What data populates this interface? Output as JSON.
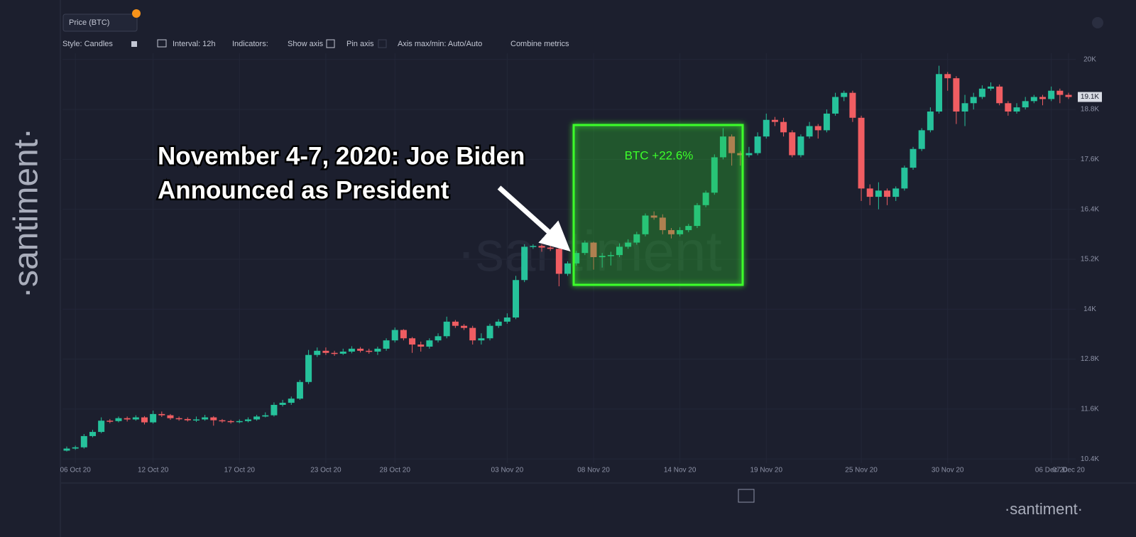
{
  "ui": {
    "toolbar": {
      "style": "Style: Candles",
      "interval": "Interval: 12h",
      "indicators": "Indicators:",
      "show_axis": "Show axis",
      "pin_axis": "Pin axis",
      "axis_minmax": "Axis max/min: Auto/Auto",
      "combine": "Combine metrics"
    },
    "side_logo": "·santiment·",
    "watermark": "·santiment",
    "footer_logo": "·santiment·"
  },
  "annotation": {
    "line1": "November 4-7, 2020: Joe Biden",
    "line2": "Announced as President",
    "box_label": "BTC +22.6%"
  },
  "chart_data": {
    "type": "candlestick",
    "up_color": "#26c29b",
    "down_color": "#f05d62",
    "grid": true,
    "ylim": [
      10300,
      20150
    ],
    "yticks": [
      {
        "value": 10400,
        "label": "10.4K"
      },
      {
        "value": 11600,
        "label": "11.6K"
      },
      {
        "value": 12800,
        "label": "12.8K"
      },
      {
        "value": 14000,
        "label": "14K"
      },
      {
        "value": 15200,
        "label": "15.2K"
      },
      {
        "value": 16400,
        "label": "16.4K"
      },
      {
        "value": 17600,
        "label": "17.6K"
      },
      {
        "value": 18800,
        "label": "18.8K"
      },
      {
        "value": 20000,
        "label": "20K"
      }
    ],
    "last_price": {
      "value": 19100,
      "label": "19.1K"
    },
    "categories": [
      null,
      "06 Oct 20",
      null,
      null,
      null,
      null,
      null,
      null,
      null,
      null,
      "12 Oct 20",
      null,
      null,
      null,
      null,
      null,
      null,
      null,
      null,
      null,
      "17 Oct 20",
      null,
      null,
      null,
      null,
      null,
      null,
      null,
      null,
      null,
      "23 Oct 20",
      null,
      null,
      null,
      null,
      null,
      null,
      null,
      "28 Oct 20",
      null,
      null,
      null,
      null,
      null,
      null,
      null,
      null,
      null,
      null,
      null,
      null,
      "03 Nov 20",
      null,
      null,
      null,
      null,
      null,
      null,
      null,
      null,
      null,
      "08 Nov 20",
      null,
      null,
      null,
      null,
      null,
      null,
      null,
      null,
      null,
      "14 Nov 20",
      null,
      null,
      null,
      null,
      null,
      null,
      null,
      null,
      null,
      "19 Nov 20",
      null,
      null,
      null,
      null,
      null,
      null,
      null,
      null,
      null,
      null,
      "25 Nov 20",
      null,
      null,
      null,
      null,
      null,
      null,
      null,
      null,
      null,
      "30 Nov 20",
      null,
      null,
      null,
      null,
      null,
      null,
      null,
      null,
      null,
      null,
      null,
      "06 Dec 20",
      null,
      "07 Dec 20"
    ],
    "series": [
      {
        "name": "Price (BTC)",
        "open": [
          10600,
          10650,
          10680,
          10950,
          11050,
          11320,
          11310,
          11380,
          11350,
          11400,
          11280,
          11480,
          11450,
          11380,
          11360,
          11330,
          11350,
          11400,
          11330,
          11310,
          11290,
          11310,
          11350,
          11420,
          11450,
          11700,
          11750,
          11850,
          12250,
          12900,
          13000,
          12950,
          12930,
          12980,
          13050,
          13000,
          12980,
          13050,
          13250,
          13500,
          13300,
          13150,
          13100,
          13250,
          13350,
          13700,
          13600,
          13550,
          13250,
          13300,
          13600,
          13700,
          13800,
          14700,
          15500,
          15520,
          15480,
          15450,
          14850,
          15100,
          15350,
          15600,
          15250,
          15280,
          15300,
          15500,
          15600,
          15800,
          16250,
          16200,
          15900,
          15800,
          15900,
          16000,
          16500,
          16800,
          17650,
          18150,
          17750,
          17700,
          17750,
          18150,
          18550,
          18500,
          18250,
          17700,
          18150,
          18400,
          18300,
          18700,
          19100,
          19200,
          18600,
          16900,
          16700,
          16850,
          16700,
          16900,
          17400,
          17850,
          18300,
          18750,
          19650,
          19550,
          18750,
          18950,
          19100,
          19300,
          19350,
          18950,
          18750,
          18850,
          19000,
          19100,
          19050,
          19250,
          19150
        ],
        "high": [
          10700,
          10720,
          11000,
          11100,
          11400,
          11360,
          11420,
          11420,
          11450,
          11430,
          11560,
          11540,
          11480,
          11420,
          11400,
          11420,
          11460,
          11430,
          11360,
          11340,
          11350,
          11400,
          11460,
          11520,
          11760,
          11820,
          11900,
          12300,
          13020,
          13080,
          13080,
          13000,
          13050,
          13110,
          13090,
          13050,
          13100,
          13300,
          13560,
          13520,
          13330,
          13220,
          13300,
          13420,
          13820,
          13740,
          13640,
          13600,
          13420,
          13650,
          13760,
          13900,
          14800,
          15560,
          15560,
          15560,
          15520,
          15500,
          15150,
          15400,
          15650,
          15620,
          15350,
          15380,
          15580,
          15680,
          15860,
          16300,
          16350,
          16280,
          15950,
          15970,
          16050,
          16550,
          16850,
          17720,
          18350,
          18200,
          17800,
          17900,
          18250,
          18700,
          18620,
          18600,
          18300,
          18200,
          18500,
          18450,
          18800,
          19200,
          19250,
          19250,
          18650,
          17000,
          17050,
          16900,
          16950,
          17450,
          17900,
          18350,
          18850,
          19850,
          19700,
          19600,
          19150,
          19200,
          19380,
          19450,
          19400,
          19000,
          18950,
          19100,
          19150,
          19150,
          19350,
          19300,
          19200
        ],
        "low": [
          10580,
          10620,
          10650,
          10920,
          11020,
          11260,
          11280,
          11300,
          11320,
          11230,
          11250,
          11410,
          11340,
          11320,
          11300,
          11290,
          11320,
          11200,
          11270,
          11250,
          11260,
          11280,
          11320,
          11400,
          11420,
          11660,
          11700,
          11820,
          12200,
          12850,
          12900,
          12880,
          12900,
          12940,
          12960,
          12930,
          12900,
          13000,
          13200,
          13250,
          12950,
          12980,
          13050,
          13200,
          13300,
          13550,
          13500,
          13150,
          13150,
          13250,
          13550,
          13650,
          13760,
          14650,
          15450,
          15380,
          15400,
          14550,
          14800,
          15050,
          15300,
          14950,
          15000,
          15050,
          15250,
          15450,
          15550,
          15750,
          16150,
          15800,
          15700,
          15750,
          15850,
          15950,
          16450,
          16750,
          17600,
          17450,
          17450,
          17650,
          17700,
          18100,
          18400,
          18150,
          17650,
          17650,
          18100,
          18100,
          18250,
          18650,
          19000,
          18500,
          16600,
          16500,
          16400,
          16500,
          16600,
          16850,
          17350,
          17800,
          18250,
          18700,
          19250,
          18450,
          18400,
          18800,
          19050,
          19250,
          18900,
          18650,
          18700,
          18800,
          18950,
          18900,
          19000,
          18950,
          19050
        ],
        "close": [
          10650,
          10680,
          10950,
          11050,
          11320,
          11310,
          11380,
          11350,
          11400,
          11280,
          11480,
          11450,
          11380,
          11360,
          11330,
          11350,
          11400,
          11330,
          11310,
          11290,
          11310,
          11350,
          11420,
          11450,
          11700,
          11750,
          11850,
          12250,
          12900,
          13000,
          12950,
          12930,
          12980,
          13050,
          13000,
          12980,
          13050,
          13250,
          13500,
          13300,
          13150,
          13100,
          13250,
          13350,
          13700,
          13600,
          13550,
          13250,
          13300,
          13600,
          13700,
          13800,
          14700,
          15500,
          15520,
          15480,
          15450,
          14850,
          15100,
          15350,
          15600,
          15250,
          15280,
          15300,
          15500,
          15600,
          15800,
          16250,
          16200,
          15900,
          15800,
          15900,
          16000,
          16500,
          16800,
          17650,
          18150,
          17750,
          17700,
          17750,
          18150,
          18550,
          18500,
          18250,
          17700,
          18150,
          18400,
          18300,
          18700,
          19100,
          19200,
          18600,
          16900,
          16700,
          16850,
          16700,
          16900,
          17400,
          17850,
          18300,
          18750,
          19650,
          19550,
          18750,
          18950,
          19100,
          19300,
          19350,
          18950,
          18750,
          18850,
          19000,
          19100,
          19050,
          19250,
          19150,
          19100
        ]
      }
    ]
  }
}
